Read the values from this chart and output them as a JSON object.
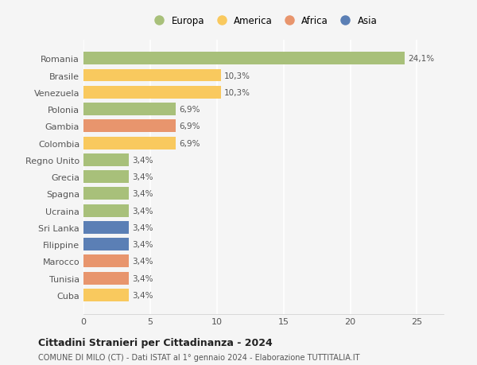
{
  "categories": [
    "Cuba",
    "Tunisia",
    "Marocco",
    "Filippine",
    "Sri Lanka",
    "Ucraina",
    "Spagna",
    "Grecia",
    "Regno Unito",
    "Colombia",
    "Gambia",
    "Polonia",
    "Venezuela",
    "Brasile",
    "Romania"
  ],
  "values": [
    3.4,
    3.4,
    3.4,
    3.4,
    3.4,
    3.4,
    3.4,
    3.4,
    3.4,
    6.9,
    6.9,
    6.9,
    10.3,
    10.3,
    24.1
  ],
  "colors": [
    "#f9c95e",
    "#e8956d",
    "#e8956d",
    "#5b7fb5",
    "#5b7fb5",
    "#a8c07a",
    "#a8c07a",
    "#a8c07a",
    "#a8c07a",
    "#f9c95e",
    "#e8956d",
    "#a8c07a",
    "#f9c95e",
    "#f9c95e",
    "#a8c07a"
  ],
  "labels": [
    "3,4%",
    "3,4%",
    "3,4%",
    "3,4%",
    "3,4%",
    "3,4%",
    "3,4%",
    "3,4%",
    "3,4%",
    "6,9%",
    "6,9%",
    "6,9%",
    "10,3%",
    "10,3%",
    "24,1%"
  ],
  "legend": [
    {
      "label": "Europa",
      "color": "#a8c07a"
    },
    {
      "label": "America",
      "color": "#f9c95e"
    },
    {
      "label": "Africa",
      "color": "#e8956d"
    },
    {
      "label": "Asia",
      "color": "#5b7fb5"
    }
  ],
  "xlim": [
    0,
    27
  ],
  "xticks": [
    0,
    5,
    10,
    15,
    20,
    25
  ],
  "title": "Cittadini Stranieri per Cittadinanza - 2024",
  "subtitle": "COMUNE DI MILO (CT) - Dati ISTAT al 1° gennaio 2024 - Elaborazione TUTTITALIA.IT",
  "bg_color": "#f5f5f5",
  "grid_color": "#ffffff",
  "bar_height": 0.75,
  "label_fontsize": 7.5,
  "ytick_fontsize": 8,
  "xtick_fontsize": 8
}
